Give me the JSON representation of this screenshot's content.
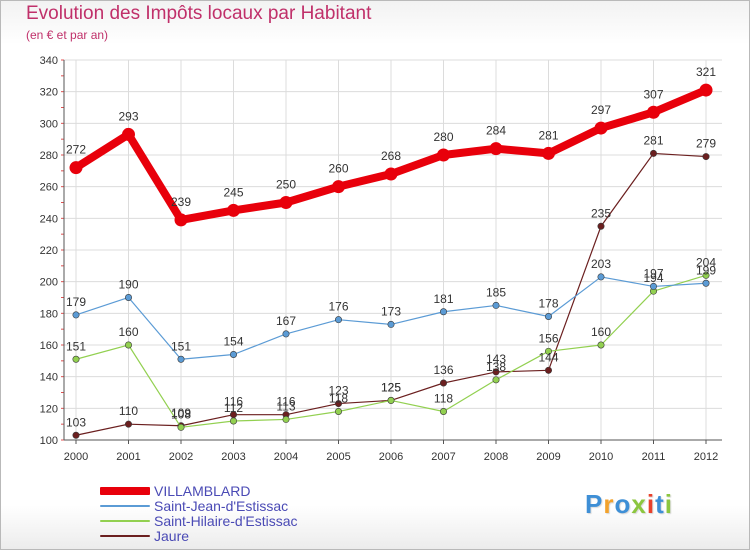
{
  "title": "Evolution des Impôts locaux par Habitant",
  "subtitle": "(en € et par an)",
  "logo": {
    "text": "Proxiti",
    "letters": [
      {
        "ch": "P",
        "color": "#3e8fd6"
      },
      {
        "ch": "r",
        "color": "#f2a22c"
      },
      {
        "ch": "o",
        "color": "#3e8fd6"
      },
      {
        "ch": "x",
        "color": "#8cc63f"
      },
      {
        "ch": "i",
        "color": "#e8412c"
      },
      {
        "ch": "t",
        "color": "#3e8fd6"
      },
      {
        "ch": "i",
        "color": "#8cc63f"
      }
    ]
  },
  "chart_data": {
    "type": "line",
    "x": [
      "2000",
      "2001",
      "2002",
      "2003",
      "2004",
      "2005",
      "2006",
      "2007",
      "2008",
      "2009",
      "2010",
      "2011",
      "2012"
    ],
    "ylim": [
      100,
      340
    ],
    "yticks": [
      100,
      120,
      140,
      160,
      180,
      200,
      220,
      240,
      260,
      280,
      300,
      320,
      340
    ],
    "grid": true,
    "legend_position": "bottom-left",
    "series": [
      {
        "name": "VILLAMBLARD",
        "color": "#e8000b",
        "values": [
          272,
          293,
          239,
          245,
          250,
          260,
          268,
          280,
          284,
          281,
          297,
          307,
          321
        ],
        "labels": [
          "272",
          "293",
          "239",
          "245",
          "250",
          "260",
          "268",
          "280",
          "284",
          "281",
          "297",
          "307",
          "321"
        ]
      },
      {
        "name": "Saint-Jean-d'Estissac",
        "color": "#5b9bd5",
        "values": [
          179,
          190,
          151,
          154,
          167,
          176,
          173,
          181,
          185,
          178,
          203,
          197,
          199
        ],
        "labels": [
          "179",
          "190",
          "151",
          "154",
          "167",
          "176",
          "173",
          "181",
          "185",
          "178",
          "203",
          "197",
          "199"
        ]
      },
      {
        "name": "Saint-Hilaire-d'Estissac",
        "color": "#92d050",
        "values": [
          151,
          160,
          108,
          112,
          113,
          118,
          125,
          118,
          138,
          156,
          160,
          194,
          204
        ],
        "labels": [
          "151",
          "160",
          "108",
          "112",
          "113",
          "118",
          "125",
          "118",
          "138",
          "156",
          "160",
          "194",
          "204"
        ]
      },
      {
        "name": "Jaure",
        "color": "#6b1f1f",
        "values": [
          103,
          110,
          109,
          116,
          116,
          123,
          125,
          136,
          143,
          144,
          235,
          281,
          279
        ],
        "labels": [
          "103",
          "110",
          "109",
          "116",
          "116",
          "123",
          "125",
          "136",
          "143",
          "144",
          "235",
          "281",
          "279"
        ]
      }
    ]
  }
}
